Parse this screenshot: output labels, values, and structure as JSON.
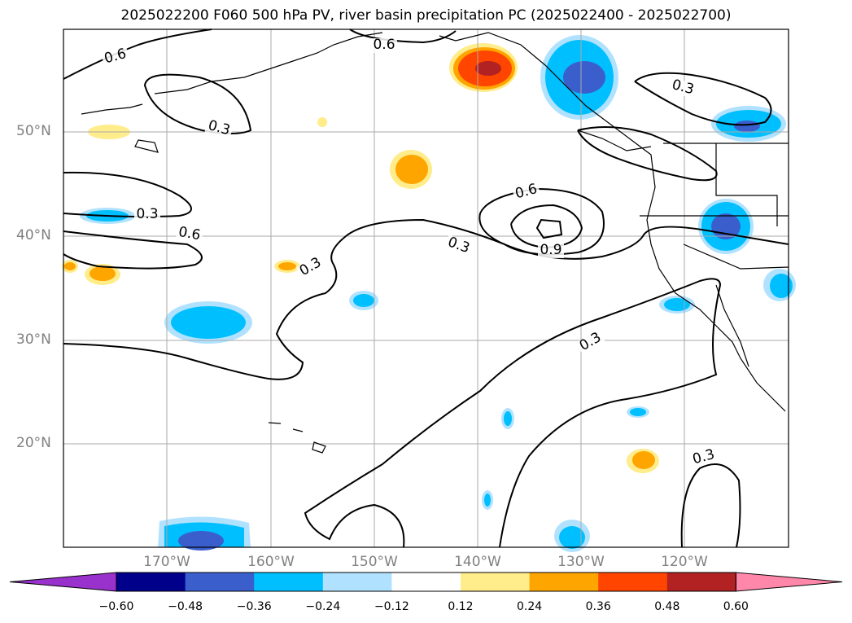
{
  "title": "2025022200 F060 500 hPa PV, river basin precipitation PC (2025022400 - 2025022700)",
  "lat_labels": [
    "50°N",
    "40°N",
    "30°N",
    "20°N"
  ],
  "lon_labels": [
    "170°W",
    "160°W",
    "150°W",
    "140°W",
    "130°W",
    "120°W"
  ],
  "colorbar": {
    "ticks": [
      "−0.60",
      "−0.48",
      "−0.36",
      "−0.24",
      "−0.12",
      "0.12",
      "0.24",
      "0.36",
      "0.48",
      "0.60"
    ],
    "colors": [
      "#9932cc",
      "#00008b",
      "#3a5fcd",
      "#00bfff",
      "#b0e2ff",
      "#ffffff",
      "#ffec8b",
      "#ffa500",
      "#ff4500",
      "#b22222",
      "#ff88aa"
    ]
  },
  "contour_labels": [
    "0.6",
    "0.6",
    "0.3",
    "0.3",
    "0.3",
    "0.6",
    "0.3",
    "0.6",
    "0.3",
    "0.9",
    "0.3",
    "0.3"
  ],
  "map": {
    "lon_range": [
      -180,
      -110
    ],
    "lat_range": [
      10,
      60
    ],
    "grid": true
  }
}
